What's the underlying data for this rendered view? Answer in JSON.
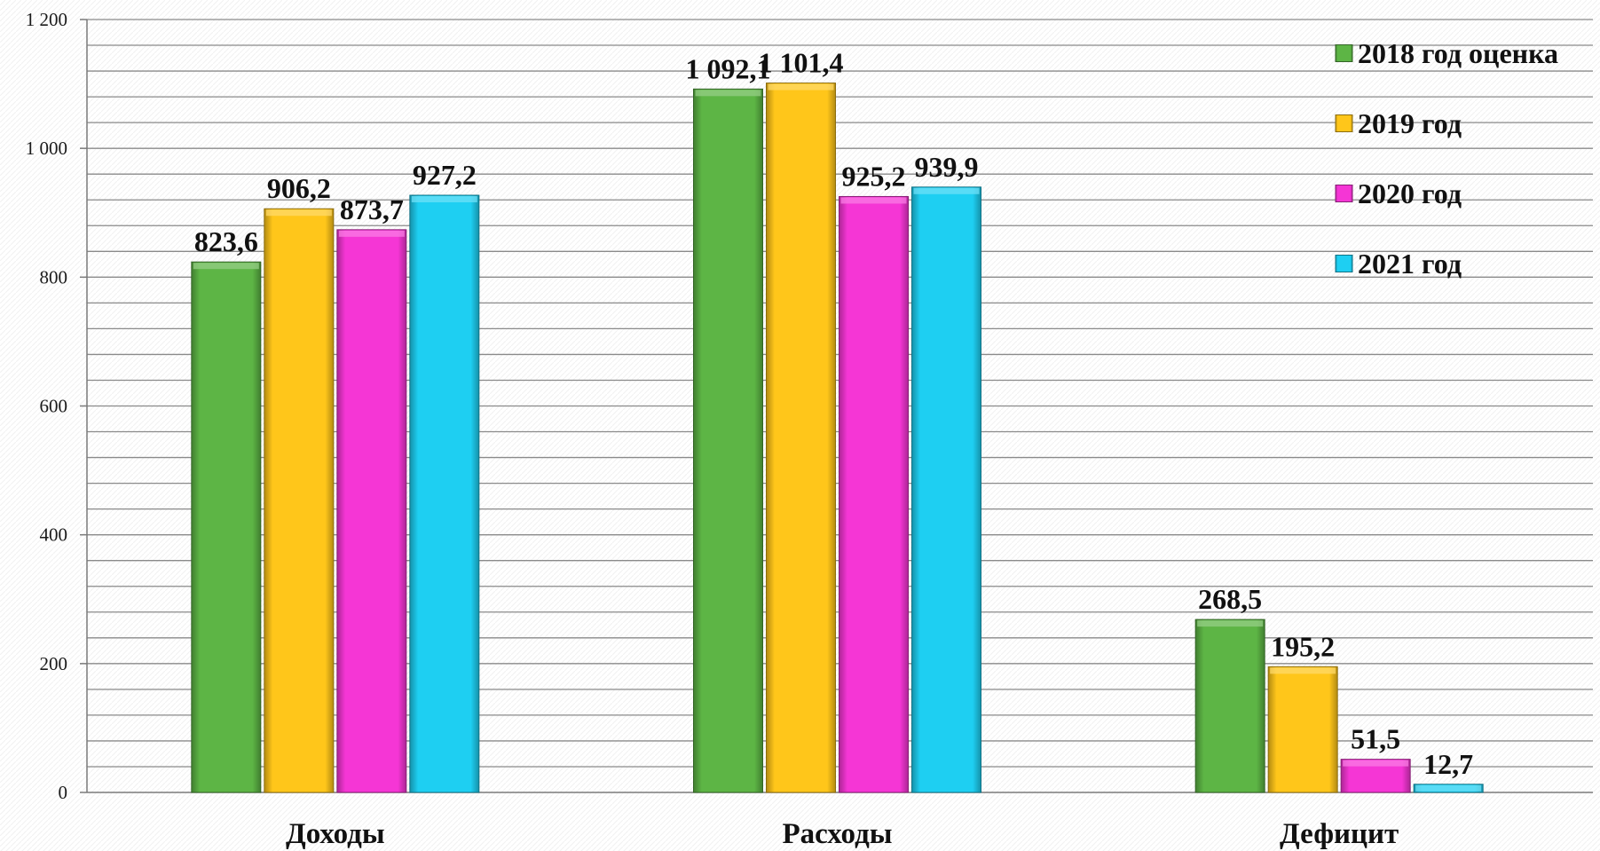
{
  "chart_data": {
    "type": "bar",
    "categories": [
      "Доходы",
      "Расходы",
      "Дефицит"
    ],
    "series": [
      {
        "name": "2018 год оценка",
        "values": [
          823.6,
          1092.1,
          268.5
        ],
        "labels": [
          "823,6",
          "1 092,1",
          "268,5"
        ],
        "color": "#5db545"
      },
      {
        "name": "2019 год",
        "values": [
          906.2,
          1101.4,
          195.2
        ],
        "labels": [
          "906,2",
          "1 101,4",
          "195,2"
        ],
        "color": "#ffc61a"
      },
      {
        "name": "2020 год",
        "values": [
          873.7,
          925.2,
          51.5
        ],
        "labels": [
          "873,7",
          "925,2",
          "51,5"
        ],
        "color": "#f536d5"
      },
      {
        "name": "2021 год",
        "values": [
          927.2,
          939.9,
          12.7
        ],
        "labels": [
          "927,2",
          "939,9",
          "12,7"
        ],
        "color": "#1ecff2"
      }
    ],
    "yticks": [
      0,
      200,
      400,
      600,
      800,
      1000,
      1200
    ],
    "ytick_labels": [
      "0",
      "200",
      "400",
      "600",
      "800",
      "1 000",
      "1 200"
    ],
    "ylim": [
      0,
      1200
    ],
    "grid": true,
    "legend_position": "top-right"
  }
}
